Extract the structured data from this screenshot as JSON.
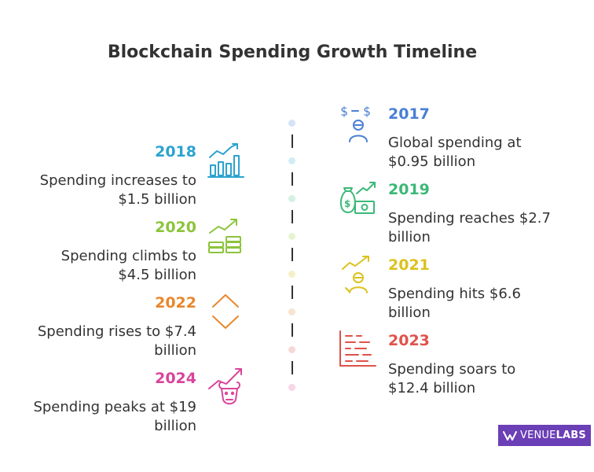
{
  "title": "Blockchain Spending Growth Timeline",
  "events": [
    {
      "year": "2017",
      "text": [
        "Global spending at",
        "$0.95 billion"
      ],
      "color": "#4a7fd6",
      "icon": "money-transfer-person-icon"
    },
    {
      "year": "2018",
      "text": [
        "Spending increases to",
        "$1.5 billion"
      ],
      "color": "#2ba3cf",
      "icon": "bar-chart-growth-icon"
    },
    {
      "year": "2019",
      "text": [
        "Spending reaches $2.7",
        "billion"
      ],
      "color": "#3cb878",
      "icon": "money-bag-growth-icon"
    },
    {
      "year": "2020",
      "text": [
        "Spending climbs to",
        "$4.5 billion"
      ],
      "color": "#8cc43c",
      "icon": "coin-stack-growth-icon"
    },
    {
      "year": "2021",
      "text": [
        "Spending hits $6.6",
        "billion"
      ],
      "color": "#dcc21e",
      "icon": "person-growth-icon"
    },
    {
      "year": "2022",
      "text": [
        "Spending rises to $7.4",
        "billion"
      ],
      "color": "#e8882c",
      "icon": "up-down-chevrons-icon"
    },
    {
      "year": "2023",
      "text": [
        "Spending soars to",
        "$12.4 billion"
      ],
      "color": "#e0524a",
      "icon": "ledger-lines-icon"
    },
    {
      "year": "2024",
      "text": [
        "Spending peaks at $19",
        "billion"
      ],
      "color": "#d9449a",
      "icon": "bull-growth-icon"
    }
  ],
  "brand": {
    "part1": "VENUE",
    "part2": "LABS",
    "icon": "venuelabs-logo-icon"
  }
}
